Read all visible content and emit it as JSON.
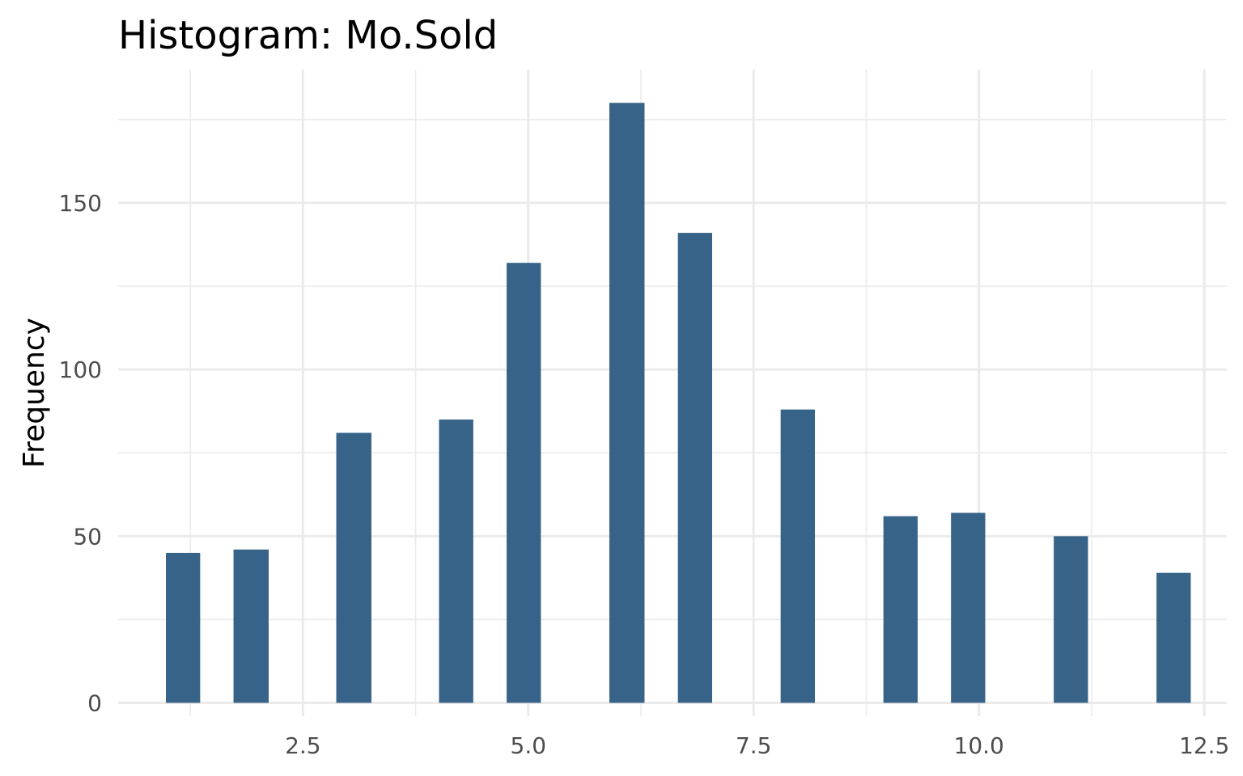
{
  "chart_data": {
    "type": "bar",
    "title": "Histogram:  Mo.Sold",
    "xlabel": "",
    "ylabel": "Frequency",
    "xlim": [
      0.45,
      12.75
    ],
    "ylim": [
      -4,
      190
    ],
    "x_ticks": [
      2.5,
      5.0,
      7.5,
      10.0,
      12.5
    ],
    "x_tick_labels": [
      "2.5",
      "5.0",
      "7.5",
      "10.0",
      "12.5"
    ],
    "y_ticks": [
      0,
      50,
      100,
      150
    ],
    "y_tick_labels": [
      "0",
      "50",
      "100",
      "150"
    ],
    "grid": true,
    "bar_color": "#376389",
    "bins": [
      {
        "start": 0.98,
        "end": 1.36,
        "value": 45
      },
      {
        "start": 1.73,
        "end": 2.12,
        "value": 46
      },
      {
        "start": 2.87,
        "end": 3.26,
        "value": 81
      },
      {
        "start": 4.01,
        "end": 4.39,
        "value": 85
      },
      {
        "start": 4.76,
        "end": 5.14,
        "value": 132
      },
      {
        "start": 5.9,
        "end": 6.29,
        "value": 180
      },
      {
        "start": 6.66,
        "end": 7.04,
        "value": 141
      },
      {
        "start": 7.8,
        "end": 8.18,
        "value": 88
      },
      {
        "start": 8.94,
        "end": 9.32,
        "value": 56
      },
      {
        "start": 9.69,
        "end": 10.07,
        "value": 57
      },
      {
        "start": 10.83,
        "end": 11.21,
        "value": 50
      },
      {
        "start": 11.97,
        "end": 12.35,
        "value": 39
      }
    ]
  }
}
